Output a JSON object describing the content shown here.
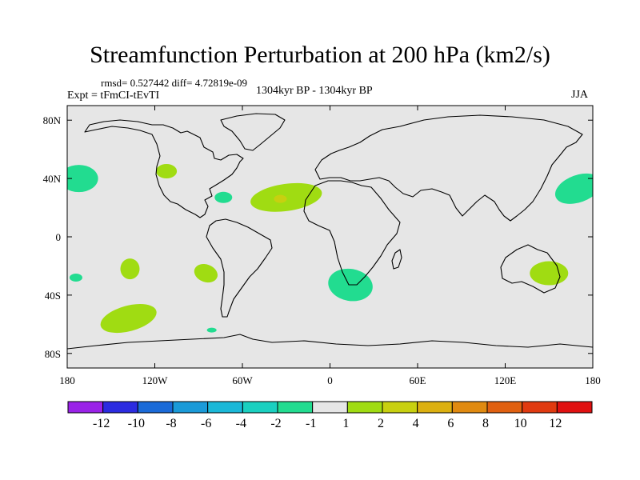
{
  "figure": {
    "title": "Streamfunction Perturbation at 200 hPa (km2/s)",
    "stats": "rmsd= 0.527442 diff= 4.72819e-09",
    "experiment": "Expt = tFmCI-tEvTI",
    "period": "1304kyr BP - 1304kyr BP",
    "season": "JJA"
  },
  "chart_data": {
    "type": "heatmap",
    "projection": "cylindrical-equidistant",
    "title": "Streamfunction Perturbation at 200 hPa (km2/s)",
    "units": "km2/s",
    "lon_range": [
      -180,
      180
    ],
    "lat_range": [
      -90,
      90
    ],
    "x_ticks": [
      {
        "value": -180,
        "label": "180"
      },
      {
        "value": -120,
        "label": "120W"
      },
      {
        "value": -60,
        "label": "60W"
      },
      {
        "value": 0,
        "label": "0"
      },
      {
        "value": 60,
        "label": "60E"
      },
      {
        "value": 120,
        "label": "120E"
      },
      {
        "value": 180,
        "label": "180"
      }
    ],
    "y_ticks": [
      {
        "value": 80,
        "label": "80N"
      },
      {
        "value": 40,
        "label": "40N"
      },
      {
        "value": 0,
        "label": "0"
      },
      {
        "value": -40,
        "label": "40S"
      },
      {
        "value": -80,
        "label": "80S"
      }
    ],
    "background_color": "#e6e6e6",
    "colorbar": {
      "levels": [
        "-12",
        "-10",
        "-8",
        "-6",
        "-4",
        "-2",
        "-1",
        "1",
        "2",
        "4",
        "6",
        "8",
        "10",
        "12"
      ],
      "colors": [
        "#9a22e8",
        "#2b2be0",
        "#1a6ad8",
        "#1a9ad8",
        "#1ab8d8",
        "#1ad0c0",
        "#22dc90",
        "#e6e6e6",
        "#a0dc12",
        "#c8d010",
        "#dcb010",
        "#e08a10",
        "#e06010",
        "#e03a10",
        "#e01010"
      ]
    },
    "anomalies": [
      {
        "region": "North Pacific west of North America",
        "lon": -172,
        "lat": 40,
        "level": "-1"
      },
      {
        "region": "Western North America",
        "lon": -112,
        "lat": 45,
        "level": "1"
      },
      {
        "region": "Caribbean",
        "lon": -73,
        "lat": 27,
        "level": "-1"
      },
      {
        "region": "Subtropical North Atlantic",
        "lon": -30,
        "lat": 27,
        "level": "1"
      },
      {
        "region": "Subtropical North Atlantic core",
        "lon": -34,
        "lat": 26,
        "level": "2"
      },
      {
        "region": "Northwest Pacific off Japan",
        "lon": 170,
        "lat": 33,
        "level": "-1"
      },
      {
        "region": "South Pacific small patch",
        "lon": -174,
        "lat": -28,
        "level": "-1"
      },
      {
        "region": "Central South Pacific",
        "lon": -137,
        "lat": -22,
        "level": "1"
      },
      {
        "region": "Southeast Pacific off South America",
        "lon": -85,
        "lat": -25,
        "level": "1"
      },
      {
        "region": "South Pacific",
        "lon": -138,
        "lat": -56,
        "level": "1"
      },
      {
        "region": "South Atlantic near tip of Africa",
        "lon": 14,
        "lat": -33,
        "level": "-1"
      },
      {
        "region": "Southern Atlantic small patch",
        "lon": -81,
        "lat": -64,
        "level": "-1"
      },
      {
        "region": "Eastern Australia",
        "lon": 150,
        "lat": -25,
        "level": "1"
      }
    ]
  }
}
